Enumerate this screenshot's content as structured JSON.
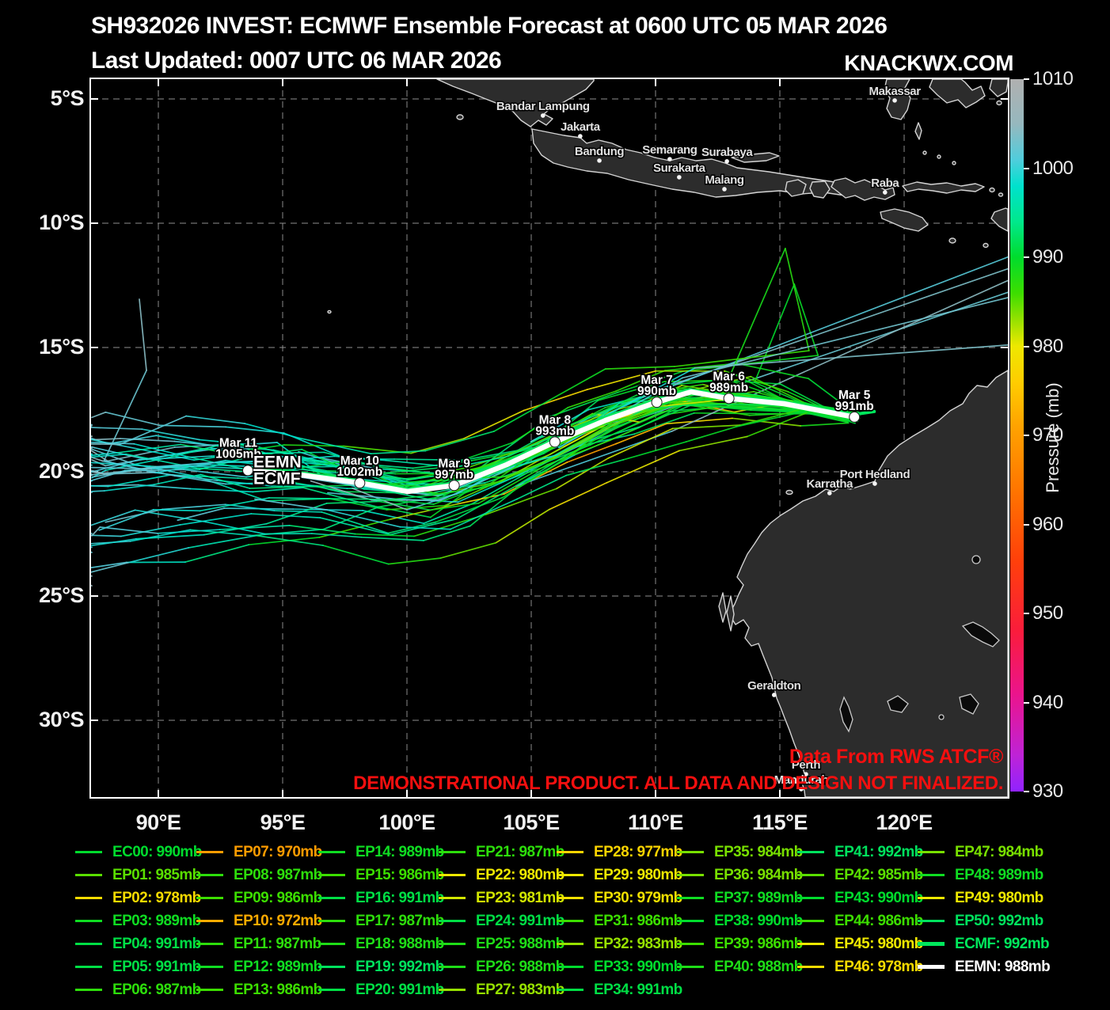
{
  "header": {
    "title": "SH932026 INVEST: ECMWF Ensemble Forecast at 0600 UTC 05 MAR 2026",
    "subtitle": "Last Updated: 0007 UTC 06 MAR 2026",
    "brand": "KNACKWX.COM"
  },
  "disclaimer": {
    "line1": "Data From RWS ATCF®",
    "line2": "DEMONSTRATIONAL PRODUCT. ALL DATA AND DESIGN NOT FINALIZED."
  },
  "map": {
    "cities": [
      {
        "name": "Bandar Lampung",
        "lon": 105.47,
        "lat": 5.67
      },
      {
        "name": "Jakarta",
        "lon": 106.97,
        "lat": 6.5
      },
      {
        "name": "Bandung",
        "lon": 107.74,
        "lat": 7.48
      },
      {
        "name": "Semarang",
        "lon": 110.57,
        "lat": 7.42
      },
      {
        "name": "Surakarta",
        "lon": 110.95,
        "lat": 8.15
      },
      {
        "name": "Surabaya",
        "lon": 112.87,
        "lat": 7.51
      },
      {
        "name": "Malang",
        "lon": 112.77,
        "lat": 8.63
      },
      {
        "name": "Makassar",
        "lon": 119.62,
        "lat": 5.06
      },
      {
        "name": "Raba",
        "lon": 119.23,
        "lat": 8.76
      },
      {
        "name": "Port Hedland",
        "lon": 118.82,
        "lat": 20.48
      },
      {
        "name": "Karratha",
        "lon": 117.0,
        "lat": 20.86
      },
      {
        "name": "Geraldton",
        "lon": 114.77,
        "lat": 28.98
      },
      {
        "name": "Perth",
        "lon": 116.05,
        "lat": 32.17
      },
      {
        "name": "Mandurah",
        "lon": 115.86,
        "lat": 32.77
      }
    ]
  },
  "chart_data": {
    "type": "line",
    "title": "ECMWF ensemble tropical cyclone tracks for SH932026 INVEST, colored by minimum pressure (mb)",
    "axes": {
      "x_ticks": [
        {
          "label": "90°E",
          "lon": 90
        },
        {
          "label": "95°E",
          "lon": 95
        },
        {
          "label": "100°E",
          "lon": 100
        },
        {
          "label": "105°E",
          "lon": 105
        },
        {
          "label": "110°E",
          "lon": 110
        },
        {
          "label": "115°E",
          "lon": 115
        },
        {
          "label": "120°E",
          "lon": 120
        }
      ],
      "y_ticks": [
        {
          "label": "5°S",
          "lat": 5
        },
        {
          "label": "10°S",
          "lat": 10
        },
        {
          "label": "15°S",
          "lat": 15
        },
        {
          "label": "20°S",
          "lat": 20
        },
        {
          "label": "25°S",
          "lat": 25
        },
        {
          "label": "30°S",
          "lat": 30
        }
      ],
      "lon_range": [
        87.3,
        124.2
      ],
      "lat_range": [
        4.2,
        33.1
      ],
      "grid": true
    },
    "colorbar": {
      "title": "Pressure (mb)",
      "min": 930,
      "max": 1010,
      "ticks": [
        1010,
        1000,
        990,
        980,
        970,
        960,
        950,
        940,
        930
      ]
    },
    "mean_track": {
      "name": "EEMN",
      "label_primary": "EEMN",
      "label_secondary": "ECMF",
      "points": [
        {
          "date": "Mar 5",
          "pressure_mb": 991,
          "lon": 118.0,
          "lat": 17.8
        },
        {
          "date": "Mar 6",
          "pressure_mb": 989,
          "lon": 112.95,
          "lat": 17.05
        },
        {
          "date": "Mar 7",
          "pressure_mb": 990,
          "lon": 110.05,
          "lat": 17.2
        },
        {
          "date": "Mar 8",
          "pressure_mb": 993,
          "lon": 105.95,
          "lat": 18.8
        },
        {
          "date": "Mar 9",
          "pressure_mb": 997,
          "lon": 101.9,
          "lat": 20.55
        },
        {
          "date": "Mar 10",
          "pressure_mb": 1002,
          "lon": 98.1,
          "lat": 20.45
        },
        {
          "date": "Mar 11",
          "pressure_mb": 1005,
          "lon": 93.6,
          "lat": 19.95
        }
      ]
    },
    "ensemble_legend": {
      "columns": [
        [
          {
            "name": "EC00",
            "pressure_mb": 990
          },
          {
            "name": "EP01",
            "pressure_mb": 985
          },
          {
            "name": "EP02",
            "pressure_mb": 978
          },
          {
            "name": "EP03",
            "pressure_mb": 989
          },
          {
            "name": "EP04",
            "pressure_mb": 991
          },
          {
            "name": "EP05",
            "pressure_mb": 991
          },
          {
            "name": "EP06",
            "pressure_mb": 987
          }
        ],
        [
          {
            "name": "EP07",
            "pressure_mb": 970
          },
          {
            "name": "EP08",
            "pressure_mb": 987
          },
          {
            "name": "EP09",
            "pressure_mb": 986
          },
          {
            "name": "EP10",
            "pressure_mb": 972
          },
          {
            "name": "EP11",
            "pressure_mb": 987
          },
          {
            "name": "EP12",
            "pressure_mb": 989
          },
          {
            "name": "EP13",
            "pressure_mb": 986
          }
        ],
        [
          {
            "name": "EP14",
            "pressure_mb": 989
          },
          {
            "name": "EP15",
            "pressure_mb": 986
          },
          {
            "name": "EP16",
            "pressure_mb": 991
          },
          {
            "name": "EP17",
            "pressure_mb": 987
          },
          {
            "name": "EP18",
            "pressure_mb": 988
          },
          {
            "name": "EP19",
            "pressure_mb": 992
          },
          {
            "name": "EP20",
            "pressure_mb": 991
          }
        ],
        [
          {
            "name": "EP21",
            "pressure_mb": 987
          },
          {
            "name": "EP22",
            "pressure_mb": 980
          },
          {
            "name": "EP23",
            "pressure_mb": 981
          },
          {
            "name": "EP24",
            "pressure_mb": 991
          },
          {
            "name": "EP25",
            "pressure_mb": 988
          },
          {
            "name": "EP26",
            "pressure_mb": 988
          },
          {
            "name": "EP27",
            "pressure_mb": 983
          }
        ],
        [
          {
            "name": "EP28",
            "pressure_mb": 977
          },
          {
            "name": "EP29",
            "pressure_mb": 980
          },
          {
            "name": "EP30",
            "pressure_mb": 979
          },
          {
            "name": "EP31",
            "pressure_mb": 986
          },
          {
            "name": "EP32",
            "pressure_mb": 983
          },
          {
            "name": "EP33",
            "pressure_mb": 990
          },
          {
            "name": "EP34",
            "pressure_mb": 991
          }
        ],
        [
          {
            "name": "EP35",
            "pressure_mb": 984
          },
          {
            "name": "EP36",
            "pressure_mb": 984
          },
          {
            "name": "EP37",
            "pressure_mb": 989
          },
          {
            "name": "EP38",
            "pressure_mb": 990
          },
          {
            "name": "EP39",
            "pressure_mb": 986
          },
          {
            "name": "EP40",
            "pressure_mb": 988
          }
        ],
        [
          {
            "name": "EP41",
            "pressure_mb": 992
          },
          {
            "name": "EP42",
            "pressure_mb": 985
          },
          {
            "name": "EP43",
            "pressure_mb": 990
          },
          {
            "name": "EP44",
            "pressure_mb": 986
          },
          {
            "name": "EP45",
            "pressure_mb": 980
          },
          {
            "name": "EP46",
            "pressure_mb": 978
          }
        ],
        [
          {
            "name": "EP47",
            "pressure_mb": 984
          },
          {
            "name": "EP48",
            "pressure_mb": 989
          },
          {
            "name": "EP49",
            "pressure_mb": 980
          },
          {
            "name": "EP50",
            "pressure_mb": 992
          },
          {
            "name": "ECMF",
            "pressure_mb": 992
          },
          {
            "name": "EEMN",
            "pressure_mb": 988
          }
        ]
      ]
    }
  }
}
